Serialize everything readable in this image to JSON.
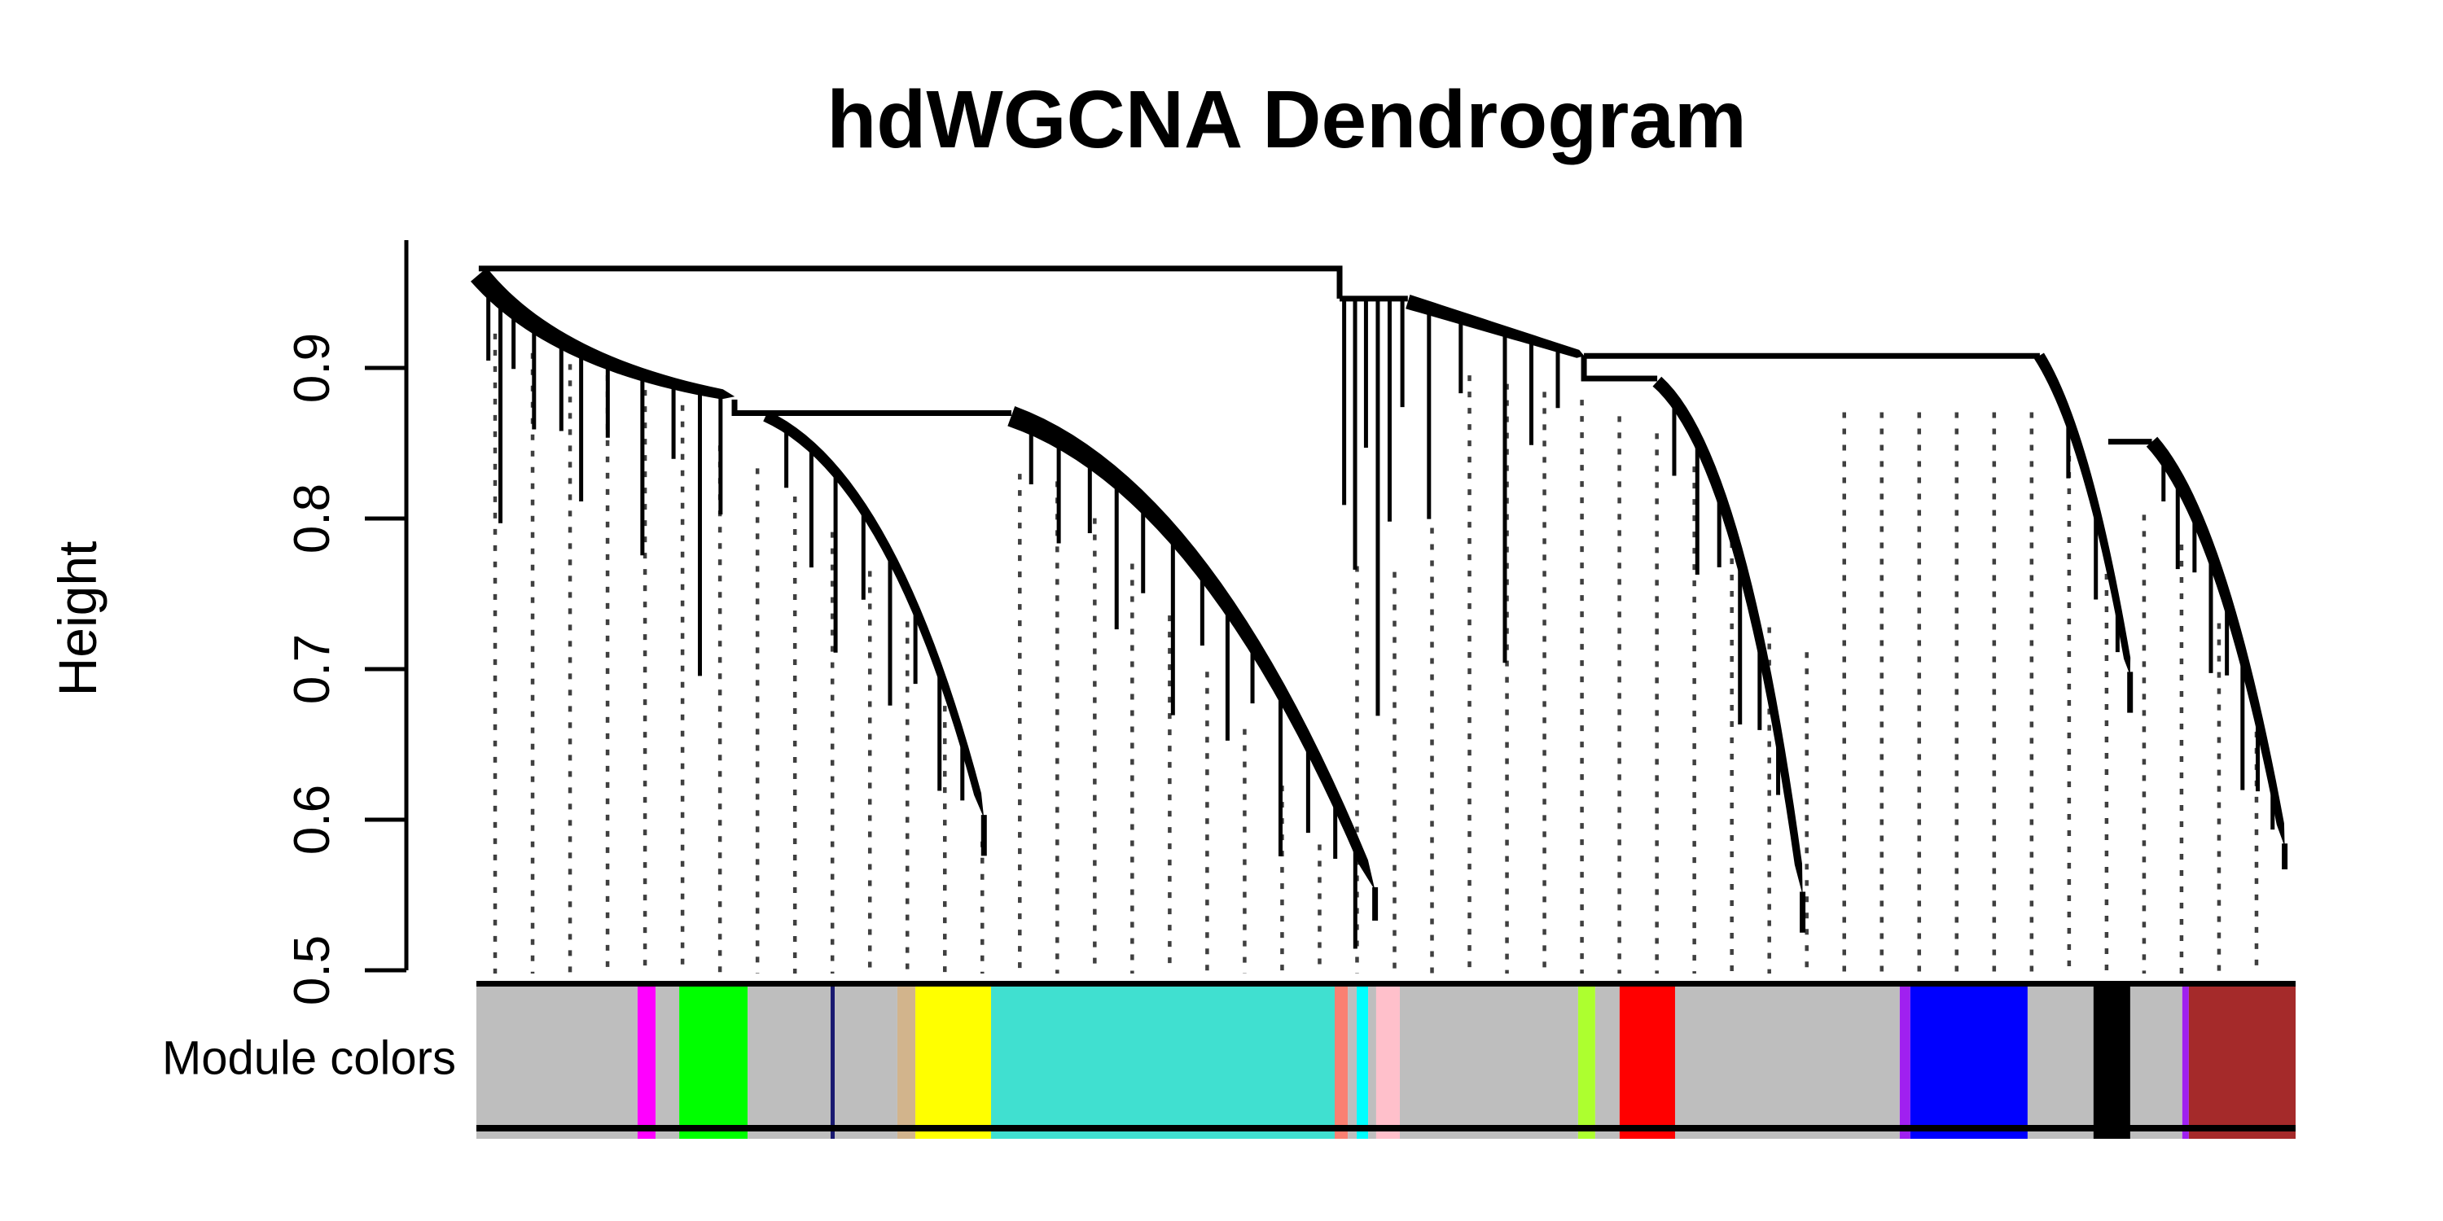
{
  "figure": {
    "title": "hdWGCNA Dendrogram",
    "y_axis_label": "Height",
    "bar_label": "Module colors",
    "background": "#ffffff",
    "line_color": "#000000",
    "guide_color": "#3f3f3f"
  },
  "chart_data": {
    "type": "dendrogram",
    "title": "hdWGCNA Dendrogram",
    "ylabel": "Height",
    "ylim": [
      0.5,
      0.97
    ],
    "yticks": [
      0.5,
      0.6,
      0.7,
      0.8,
      0.9
    ],
    "grid": false,
    "legend": "none",
    "annotation_track": {
      "label": "Module colors",
      "modules": [
        {
          "name": "grey",
          "color": "#BEBEBE",
          "from": 0.0,
          "to": 0.0886
        },
        {
          "name": "magenta",
          "color": "#FF00FF",
          "from": 0.0886,
          "to": 0.0985
        },
        {
          "name": "grey",
          "color": "#BEBEBE",
          "from": 0.0985,
          "to": 0.1115
        },
        {
          "name": "green",
          "color": "#00FF00",
          "from": 0.1115,
          "to": 0.1491
        },
        {
          "name": "grey",
          "color": "#BEBEBE",
          "from": 0.1491,
          "to": 0.1947
        },
        {
          "name": "midnightblue",
          "color": "#191970",
          "from": 0.1947,
          "to": 0.197
        },
        {
          "name": "grey",
          "color": "#BEBEBE",
          "from": 0.197,
          "to": 0.2314
        },
        {
          "name": "tan",
          "color": "#D2B48C",
          "from": 0.2314,
          "to": 0.2413
        },
        {
          "name": "yellow",
          "color": "#FFFF00",
          "from": 0.2413,
          "to": 0.2829
        },
        {
          "name": "turquoise",
          "color": "#40E0D0",
          "from": 0.2829,
          "to": 0.4718
        },
        {
          "name": "salmon",
          "color": "#FA8072",
          "from": 0.4718,
          "to": 0.479
        },
        {
          "name": "grey",
          "color": "#BEBEBE",
          "from": 0.479,
          "to": 0.4839
        },
        {
          "name": "cyan",
          "color": "#00FFFF",
          "from": 0.4839,
          "to": 0.4902
        },
        {
          "name": "grey",
          "color": "#BEBEBE",
          "from": 0.4902,
          "to": 0.4946
        },
        {
          "name": "pink",
          "color": "#FFC0CB",
          "from": 0.4946,
          "to": 0.5076
        },
        {
          "name": "grey",
          "color": "#BEBEBE",
          "from": 0.5076,
          "to": 0.6056
        },
        {
          "name": "greenyellow",
          "color": "#ADFF2F",
          "from": 0.6056,
          "to": 0.615
        },
        {
          "name": "grey",
          "color": "#BEBEBE",
          "from": 0.615,
          "to": 0.6284
        },
        {
          "name": "red",
          "color": "#FF0000",
          "from": 0.6284,
          "to": 0.6589
        },
        {
          "name": "grey",
          "color": "#BEBEBE",
          "from": 0.6589,
          "to": 0.7824
        },
        {
          "name": "purple",
          "color": "#A020F0",
          "from": 0.7824,
          "to": 0.7882
        },
        {
          "name": "blue",
          "color": "#0000FF",
          "from": 0.7882,
          "to": 0.8527
        },
        {
          "name": "grey",
          "color": "#BEBEBE",
          "from": 0.8527,
          "to": 0.8889
        },
        {
          "name": "black",
          "color": "#000000",
          "from": 0.8889,
          "to": 0.9091
        },
        {
          "name": "grey",
          "color": "#BEBEBE",
          "from": 0.9091,
          "to": 0.9377
        },
        {
          "name": "purple",
          "color": "#A020F0",
          "from": 0.9377,
          "to": 0.9413
        },
        {
          "name": "brown",
          "color": "#A52A2A",
          "from": 0.9413,
          "to": 1.0
        }
      ]
    },
    "dendrogram": {
      "connectors": [
        {
          "name": "root-merge",
          "points": [
            [
              0.0013,
              0.966
            ],
            [
              0.4745,
              0.966
            ],
            [
              0.4745,
              0.946
            ]
          ]
        },
        {
          "name": "right-top-link",
          "points": [
            [
              0.4745,
              0.946
            ],
            [
              0.512,
              0.946
            ]
          ]
        },
        {
          "name": "left-ledge",
          "points": [
            [
              0.1419,
              0.879
            ],
            [
              0.1419,
              0.87
            ],
            [
              0.2941,
              0.87
            ]
          ]
        },
        {
          "name": "right-long-merge",
          "points": [
            [
              0.6088,
              0.908
            ],
            [
              0.8594,
              0.908
            ]
          ]
        },
        {
          "name": "right-step-ledge",
          "points": [
            [
              0.6088,
              0.908
            ],
            [
              0.6088,
              0.893
            ],
            [
              0.6491,
              0.893
            ]
          ]
        },
        {
          "name": "far-right-ledge",
          "points": [
            [
              0.897,
              0.851
            ],
            [
              0.921,
              0.851
            ]
          ]
        }
      ],
      "combs": [
        {
          "from": [
            0.0013,
            0.962
          ],
          "to": [
            0.142,
            0.881
          ],
          "w": [
            26,
            12
          ],
          "ctrl": [
            0.3,
            0.75
          ],
          "tail": 0,
          "drops": [
            [
              0.06,
              0.05
            ],
            [
              0.13,
              0.15
            ],
            [
              0.2,
              0.04
            ],
            [
              0.3,
              0.07
            ],
            [
              0.42,
              0.06
            ],
            [
              0.5,
              0.1
            ],
            [
              0.6,
              0.05
            ],
            [
              0.72,
              0.12
            ],
            [
              0.82,
              0.05
            ],
            [
              0.9,
              0.19
            ],
            [
              0.96,
              0.08
            ]
          ]
        },
        {
          "from": [
            0.159,
            0.868
          ],
          "to": [
            0.279,
            0.601
          ],
          "w": [
            14,
            9
          ],
          "ctrl": [
            0.6,
            0.15
          ],
          "tail": 0.025,
          "drops": [
            [
              0.08,
              0.04
            ],
            [
              0.18,
              0.08
            ],
            [
              0.28,
              0.12
            ],
            [
              0.4,
              0.06
            ],
            [
              0.52,
              0.1
            ],
            [
              0.64,
              0.05
            ],
            [
              0.76,
              0.08
            ],
            [
              0.88,
              0.04
            ]
          ]
        },
        {
          "from": [
            0.294,
            0.868
          ],
          "to": [
            0.494,
            0.553
          ],
          "w": [
            26,
            12
          ],
          "ctrl": [
            0.55,
            0.15
          ],
          "tail": 0.02,
          "drops": [
            [
              0.05,
              0.04
            ],
            [
              0.12,
              0.07
            ],
            [
              0.2,
              0.05
            ],
            [
              0.27,
              0.1
            ],
            [
              0.34,
              0.06
            ],
            [
              0.42,
              0.12
            ],
            [
              0.5,
              0.05
            ],
            [
              0.57,
              0.09
            ],
            [
              0.64,
              0.04
            ],
            [
              0.72,
              0.11
            ],
            [
              0.8,
              0.06
            ],
            [
              0.88,
              0.04
            ],
            [
              0.94,
              0.07
            ]
          ]
        },
        {
          "from": [
            0.512,
            0.944
          ],
          "to": [
            0.609,
            0.908
          ],
          "w": [
            18,
            10
          ],
          "ctrl": [
            0.5,
            0.5
          ],
          "tail": 0,
          "drops": [
            [
              0.12,
              0.14
            ],
            [
              0.3,
              0.05
            ],
            [
              0.55,
              0.22
            ],
            [
              0.7,
              0.07
            ],
            [
              0.85,
              0.04
            ]
          ]
        },
        {
          "from": [
            0.649,
            0.891
          ],
          "to": [
            0.729,
            0.55
          ],
          "w": [
            16,
            9
          ],
          "ctrl": [
            0.6,
            0.15
          ],
          "tail": 0.025,
          "drops": [
            [
              0.1,
              0.05
            ],
            [
              0.24,
              0.09
            ],
            [
              0.38,
              0.05
            ],
            [
              0.52,
              0.11
            ],
            [
              0.66,
              0.06
            ],
            [
              0.8,
              0.04
            ]
          ]
        },
        {
          "from": [
            0.859,
            0.908
          ],
          "to": [
            0.909,
            0.696
          ],
          "w": [
            14,
            8
          ],
          "ctrl": [
            0.55,
            0.25
          ],
          "tail": 0.025,
          "drops": [
            [
              0.3,
              0.04
            ],
            [
              0.6,
              0.06
            ],
            [
              0.85,
              0.03
            ]
          ]
        },
        {
          "from": [
            0.921,
            0.851
          ],
          "to": [
            0.994,
            0.582
          ],
          "w": [
            18,
            9
          ],
          "ctrl": [
            0.55,
            0.2
          ],
          "tail": 0.015,
          "drops": [
            [
              0.08,
              0.03
            ],
            [
              0.18,
              0.06
            ],
            [
              0.3,
              0.04
            ],
            [
              0.42,
              0.08
            ],
            [
              0.54,
              0.05
            ],
            [
              0.66,
              0.09
            ],
            [
              0.78,
              0.05
            ],
            [
              0.9,
              0.03
            ]
          ]
        }
      ],
      "cluster_drops": [
        {
          "x": 0.477,
          "from": 0.946,
          "to": 0.809
        },
        {
          "x": 0.483,
          "from": 0.946,
          "to": 0.766
        },
        {
          "x": 0.489,
          "from": 0.946,
          "to": 0.847
        },
        {
          "x": 0.4955,
          "from": 0.946,
          "to": 0.669
        },
        {
          "x": 0.502,
          "from": 0.946,
          "to": 0.798
        },
        {
          "x": 0.509,
          "from": 0.946,
          "to": 0.874
        }
      ],
      "guides": {
        "start": 0.0103,
        "end": 0.999,
        "spacing": 0.0206,
        "bottom": 0.498,
        "profile": [
          [
            0.0,
            0.936
          ],
          [
            0.029,
            0.917
          ],
          [
            0.074,
            0.901
          ],
          [
            0.119,
            0.879
          ],
          [
            0.142,
            0.842
          ],
          [
            0.159,
            0.839
          ],
          [
            0.186,
            0.809
          ],
          [
            0.213,
            0.777
          ],
          [
            0.24,
            0.733
          ],
          [
            0.262,
            0.669
          ],
          [
            0.277,
            0.598
          ],
          [
            0.282,
            0.571
          ],
          [
            0.287,
            0.839
          ],
          [
            0.32,
            0.831
          ],
          [
            0.347,
            0.798
          ],
          [
            0.374,
            0.755
          ],
          [
            0.401,
            0.706
          ],
          [
            0.427,
            0.658
          ],
          [
            0.454,
            0.609
          ],
          [
            0.47,
            0.577
          ],
          [
            0.476,
            0.777
          ],
          [
            0.499,
            0.771
          ],
          [
            0.524,
            0.771
          ],
          [
            0.53,
            0.906
          ],
          [
            0.566,
            0.896
          ],
          [
            0.609,
            0.885
          ],
          [
            0.649,
            0.863
          ],
          [
            0.669,
            0.842
          ],
          [
            0.692,
            0.798
          ],
          [
            0.714,
            0.723
          ],
          [
            0.728,
            0.523
          ],
          [
            0.734,
            0.877
          ],
          [
            0.859,
            0.877
          ],
          [
            0.871,
            0.863
          ],
          [
            0.884,
            0.82
          ],
          [
            0.897,
            0.766
          ],
          [
            0.909,
            0.663
          ],
          [
            0.915,
            0.809
          ],
          [
            0.929,
            0.809
          ],
          [
            0.947,
            0.766
          ],
          [
            0.965,
            0.718
          ],
          [
            0.978,
            0.669
          ],
          [
            0.992,
            0.555
          ]
        ]
      }
    }
  }
}
